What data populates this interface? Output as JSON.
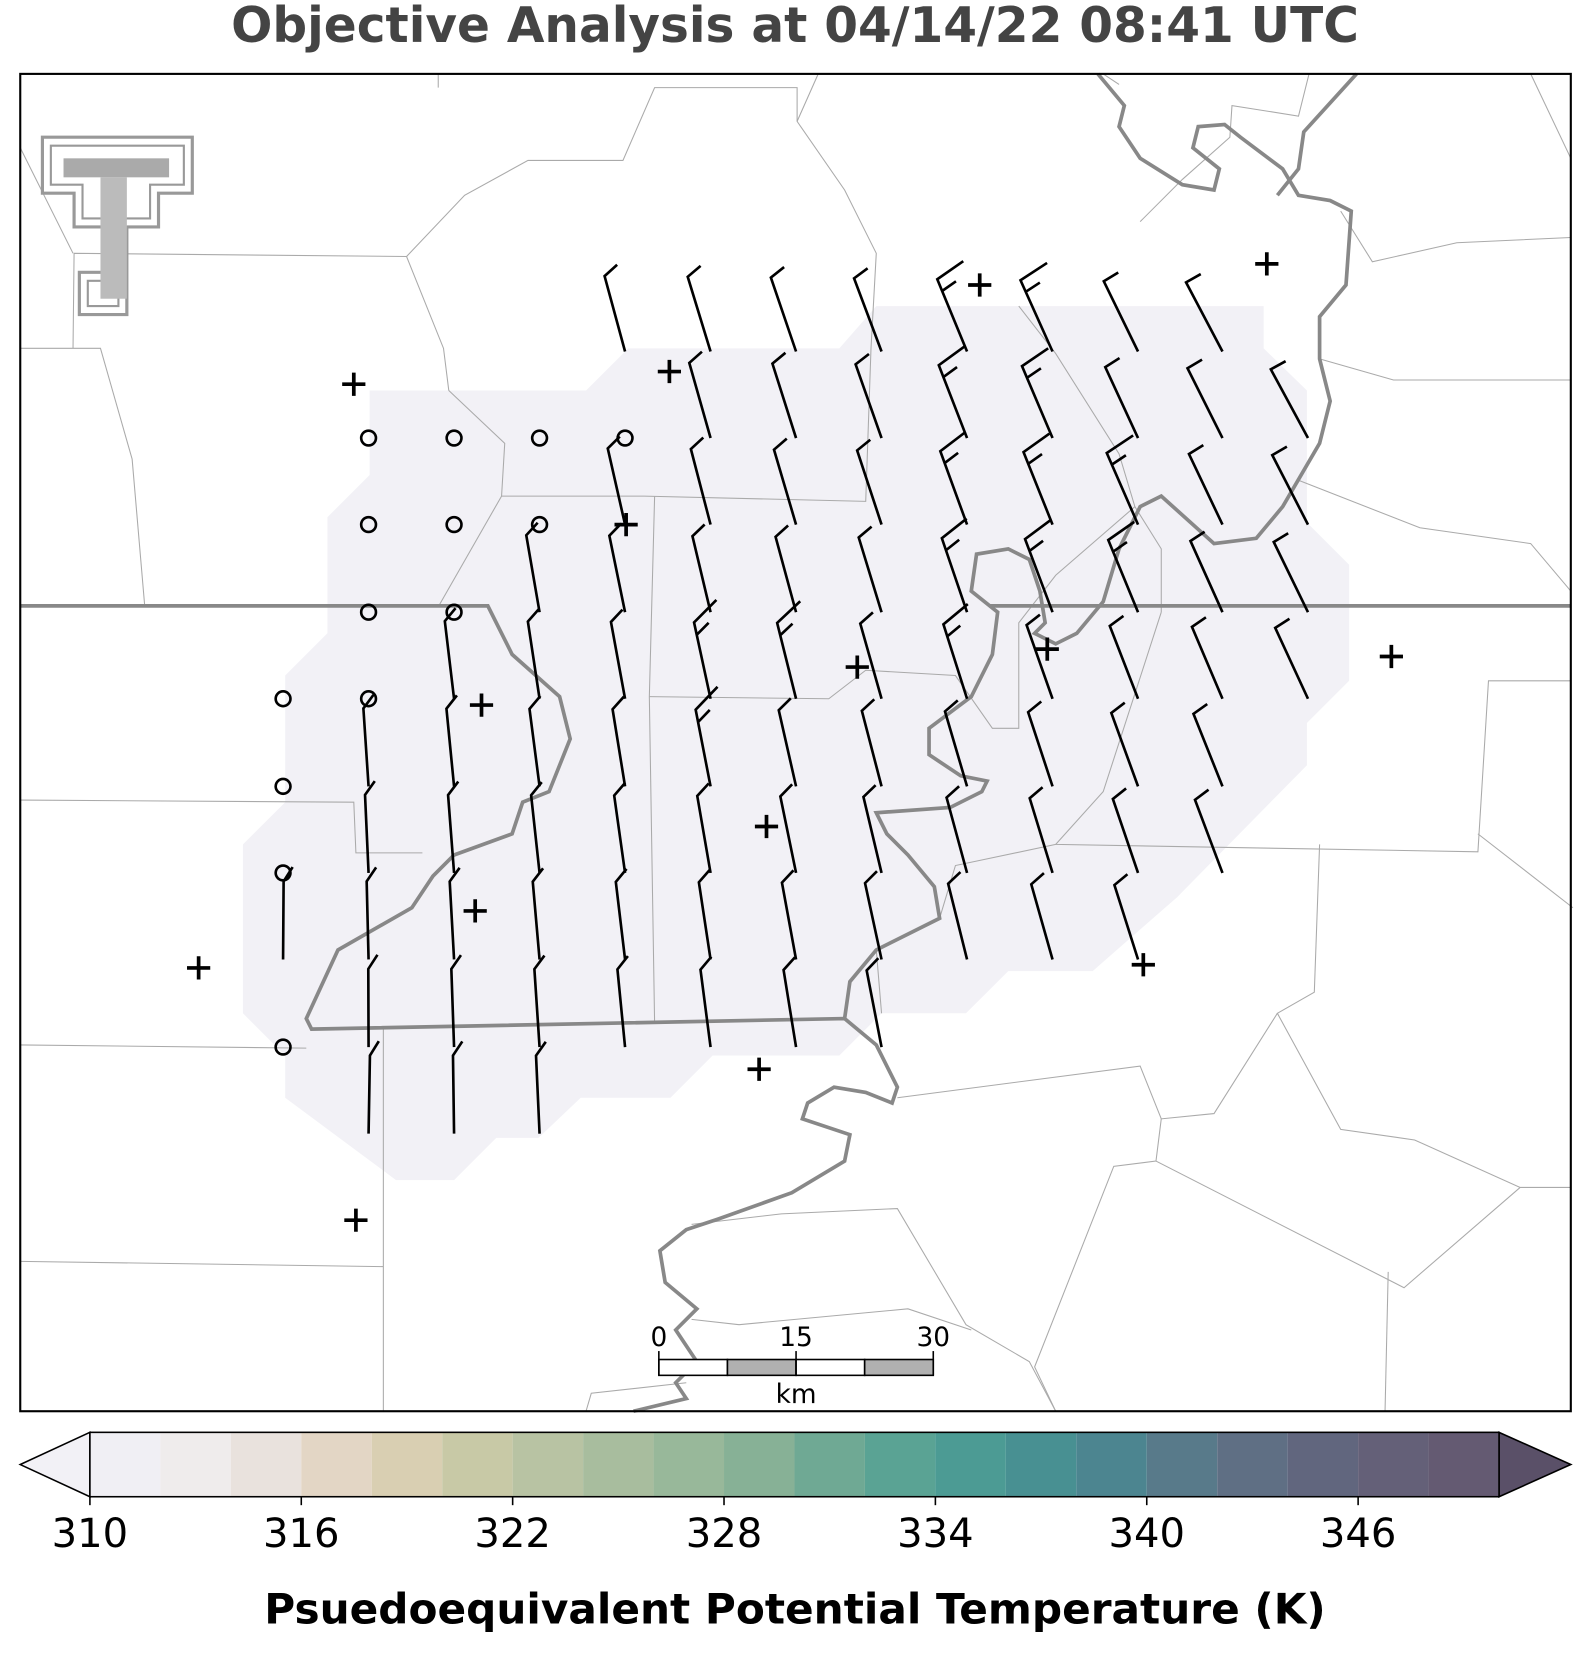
{
  "title": "Objective Analysis at 04/14/22 08:41 UTC",
  "scale_bar": {
    "ticks": [
      0,
      15,
      30
    ],
    "unit": "km"
  },
  "colorbar": {
    "type": "colorbar",
    "label": "Psuedoequivalent Potential Temperature (K)",
    "xlim": [
      310,
      350
    ],
    "bounds": [
      310,
      312,
      314,
      316,
      318,
      320,
      322,
      324,
      326,
      328,
      330,
      332,
      334,
      336,
      338,
      340,
      342,
      344,
      346,
      348,
      350
    ],
    "colors": [
      "#f0eff4",
      "#efecec",
      "#e9e2dd",
      "#e3d6c5",
      "#d9cfb2",
      "#c8c9a6",
      "#b8c3a3",
      "#a8bd9e",
      "#98b89a",
      "#87b196",
      "#6fa994",
      "#5aa394",
      "#4c9b94",
      "#489092",
      "#4c8590",
      "#587a8a",
      "#5f6f84",
      "#61667e",
      "#646078",
      "#645a72"
    ],
    "under_color": "#f2f1f6",
    "over_color": "#5a5068",
    "ticks": [
      310,
      316,
      322,
      328,
      334,
      340,
      346
    ]
  }
}
